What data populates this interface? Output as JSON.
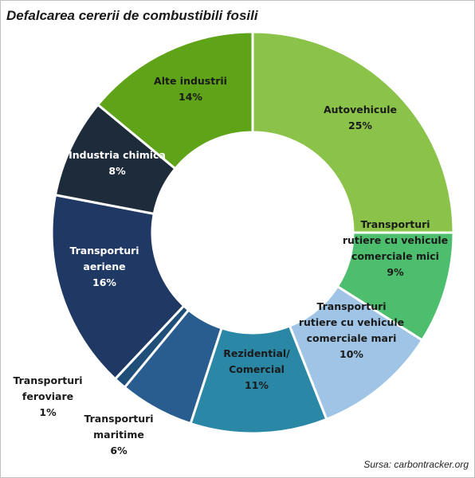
{
  "chart_data": {
    "type": "pie",
    "title": "Defalcarea cererii de combustibili fosili",
    "source": "Sursa: carbontracker.org",
    "slices": [
      {
        "name": "Autovehicule",
        "value": 25,
        "label": "25%",
        "color": "#8bc34a",
        "text_color": "#1a1a1a",
        "name_lines": [
          "Autovehicule"
        ]
      },
      {
        "name": "Transporturi rutiere cu vehicule comerciale mici",
        "value": 9,
        "label": "9%",
        "color": "#4dbd6e",
        "text_color": "#1a1a1a",
        "name_lines": [
          "Transporturi",
          "rutiere cu vehicule",
          "comerciale mici"
        ]
      },
      {
        "name": "Transporturi rutiere cu vehicule comerciale mari",
        "value": 10,
        "label": "10%",
        "color": "#9fc4e6",
        "text_color": "#1a1a1a",
        "name_lines": [
          "Transporturi",
          "rutiere cu vehicule",
          "comerciale mari"
        ]
      },
      {
        "name": "Rezidential/ Comercial",
        "value": 11,
        "label": "11%",
        "color": "#2a88a6",
        "text_color": "#1a1a1a",
        "name_lines": [
          "Rezidential/",
          "Comercial"
        ]
      },
      {
        "name": "Transporturi maritime",
        "value": 6,
        "label": "6%",
        "color": "#2a5d8f",
        "text_color": "#1a1a1a",
        "name_lines": [
          "Transporturi",
          "maritime"
        ]
      },
      {
        "name": "Transporturi feroviare",
        "value": 1,
        "label": "1%",
        "color": "#1f4e79",
        "text_color": "#1a1a1a",
        "name_lines": [
          "Transporturi",
          "feroviare"
        ]
      },
      {
        "name": "Transporturi aeriene",
        "value": 16,
        "label": "16%",
        "color": "#203864",
        "text_color": "#ffffff",
        "name_lines": [
          "Transporturi",
          "aeriene"
        ]
      },
      {
        "name": "Industria chimica",
        "value": 8,
        "label": "8%",
        "color": "#1e2b3a",
        "text_color": "#ffffff",
        "name_lines": [
          "Industria chimica"
        ]
      },
      {
        "name": "Alte industrii",
        "value": 14,
        "label": "14%",
        "color": "#5ea318",
        "text_color": "#1a1a1a",
        "name_lines": [
          "Alte industrii"
        ]
      }
    ]
  }
}
